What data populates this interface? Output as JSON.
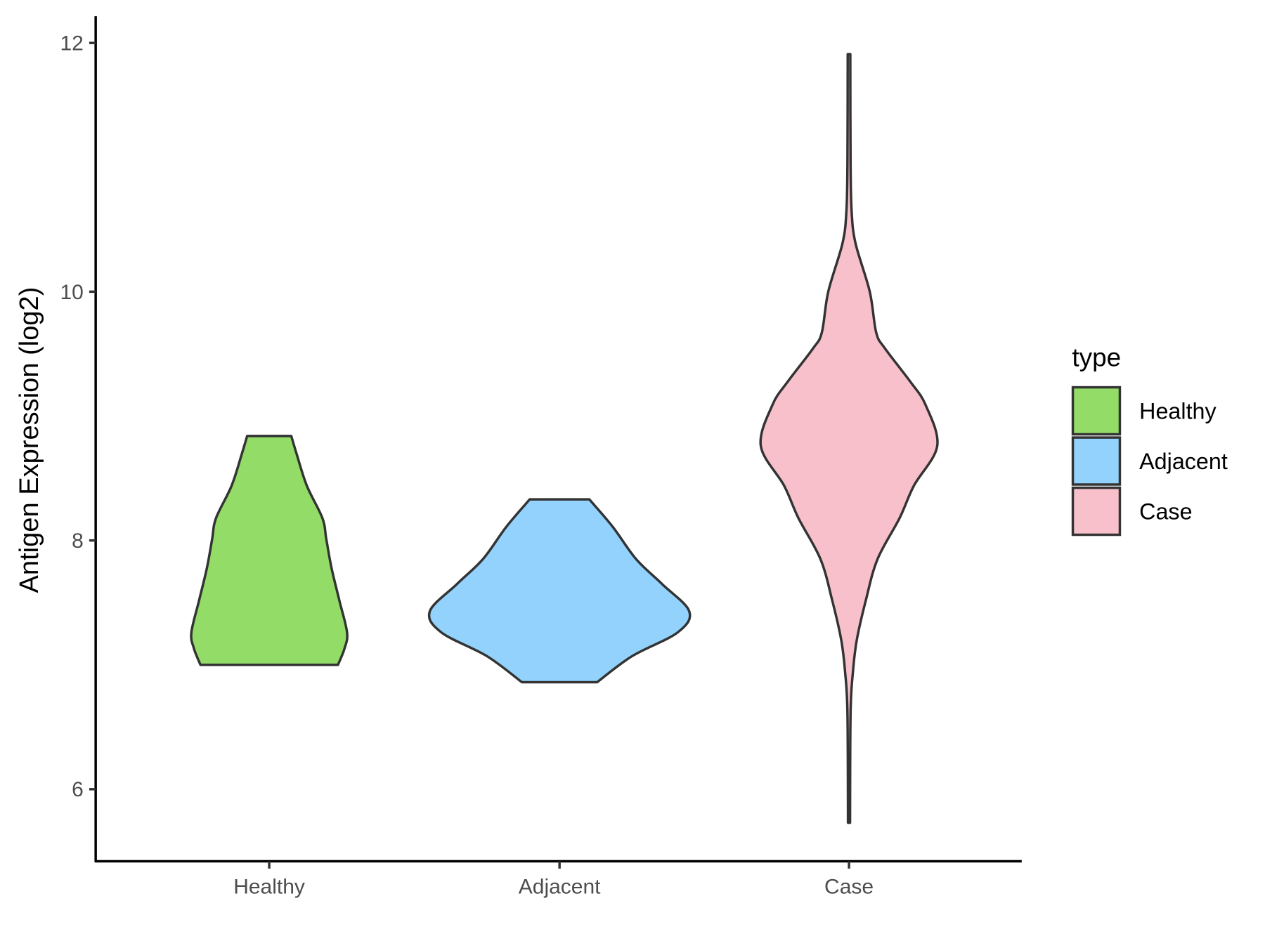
{
  "chart_data": {
    "type": "violin",
    "title": "",
    "xlabel": "",
    "ylabel": "Antigen Expression (log2)",
    "ylim": [
      5.45,
      12.2
    ],
    "yticks": [
      "6",
      "8",
      "10",
      "12"
    ],
    "categories": [
      "Healthy",
      "Adjacent",
      "Case"
    ],
    "legend": {
      "title": "type",
      "placement": "right",
      "entries": [
        "Healthy",
        "Adjacent",
        "Case"
      ]
    },
    "grid": false,
    "series": [
      {
        "name": "Healthy",
        "color": "#92DC67",
        "profile": [
          [
            8.84,
            0.17
          ],
          [
            8.7,
            0.21
          ],
          [
            8.44,
            0.29
          ],
          [
            8.18,
            0.41
          ],
          [
            8.01,
            0.44
          ],
          [
            7.78,
            0.48
          ],
          [
            7.52,
            0.54
          ],
          [
            7.26,
            0.6
          ],
          [
            7.13,
            0.58
          ],
          [
            7.0,
            0.53
          ]
        ]
      },
      {
        "name": "Adjacent",
        "color": "#92D2FD",
        "profile": [
          [
            8.33,
            0.23
          ],
          [
            8.11,
            0.41
          ],
          [
            7.85,
            0.59
          ],
          [
            7.65,
            0.79
          ],
          [
            7.43,
            1.0
          ],
          [
            7.26,
            0.91
          ],
          [
            7.07,
            0.56
          ],
          [
            6.86,
            0.29
          ]
        ]
      },
      {
        "name": "Case",
        "color": "#F7C0CB",
        "profile": [
          [
            11.91,
            0.01
          ],
          [
            11.04,
            0.012
          ],
          [
            10.65,
            0.02
          ],
          [
            10.39,
            0.05
          ],
          [
            10.0,
            0.16
          ],
          [
            9.67,
            0.21
          ],
          [
            9.54,
            0.28
          ],
          [
            9.28,
            0.47
          ],
          [
            9.09,
            0.59
          ],
          [
            8.76,
            0.68
          ],
          [
            8.44,
            0.5
          ],
          [
            8.18,
            0.39
          ],
          [
            7.85,
            0.22
          ],
          [
            7.52,
            0.13
          ],
          [
            7.2,
            0.06
          ],
          [
            6.94,
            0.03
          ],
          [
            6.61,
            0.012
          ],
          [
            5.73,
            0.008
          ]
        ]
      }
    ],
    "outline_color": "#333333"
  }
}
